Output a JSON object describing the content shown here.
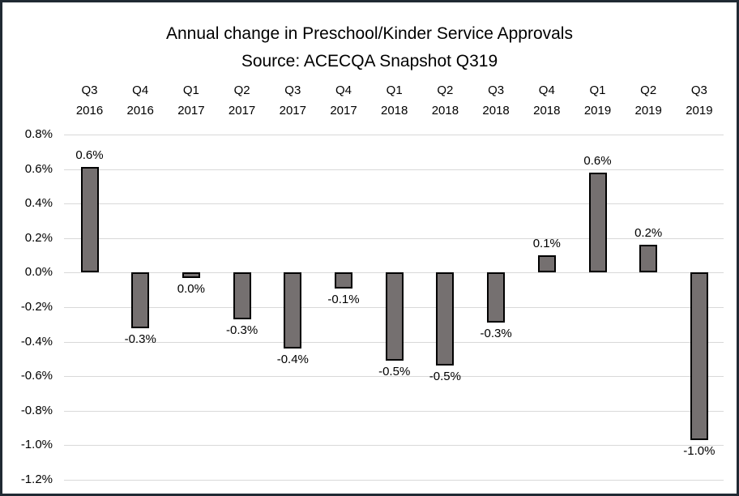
{
  "chart_data": {
    "type": "bar",
    "title": "Annual change in Preschool/Kinder Service Approvals",
    "subtitle": "Source: ACECQA Snapshot Q319",
    "legend_position": "none",
    "grid": true,
    "ylim": [
      -1.2,
      0.8
    ],
    "colors": {
      "bar_fill": "#757070",
      "bar_border": "#000000",
      "gridline": "#d9d9d9",
      "text": "#000000",
      "frame_border": "#202a33"
    },
    "y_axis": {
      "tick_format": "percent",
      "ticks": [
        {
          "value": 0.8,
          "label": "0.8%"
        },
        {
          "value": 0.6,
          "label": "0.6%"
        },
        {
          "value": 0.4,
          "label": "0.4%"
        },
        {
          "value": 0.2,
          "label": "0.2%"
        },
        {
          "value": 0.0,
          "label": "0.0%"
        },
        {
          "value": -0.2,
          "label": "-0.2%"
        },
        {
          "value": -0.4,
          "label": "-0.4%"
        },
        {
          "value": -0.6,
          "label": "-0.6%"
        },
        {
          "value": -0.8,
          "label": "-0.8%"
        },
        {
          "value": -1.0,
          "label": "-1.0%"
        },
        {
          "value": -1.2,
          "label": "-1.2%"
        }
      ]
    },
    "points": [
      {
        "quarter": "Q3",
        "year": "2016",
        "value": 0.61,
        "label": "0.6%"
      },
      {
        "quarter": "Q4",
        "year": "2016",
        "value": -0.32,
        "label": "-0.3%"
      },
      {
        "quarter": "Q1",
        "year": "2017",
        "value": -0.03,
        "label": "0.0%"
      },
      {
        "quarter": "Q2",
        "year": "2017",
        "value": -0.27,
        "label": "-0.3%"
      },
      {
        "quarter": "Q3",
        "year": "2017",
        "value": -0.44,
        "label": "-0.4%"
      },
      {
        "quarter": "Q4",
        "year": "2017",
        "value": -0.09,
        "label": "-0.1%"
      },
      {
        "quarter": "Q1",
        "year": "2018",
        "value": -0.51,
        "label": "-0.5%"
      },
      {
        "quarter": "Q2",
        "year": "2018",
        "value": -0.54,
        "label": "-0.5%"
      },
      {
        "quarter": "Q3",
        "year": "2018",
        "value": -0.29,
        "label": "-0.3%"
      },
      {
        "quarter": "Q4",
        "year": "2018",
        "value": 0.1,
        "label": "0.1%"
      },
      {
        "quarter": "Q1",
        "year": "2019",
        "value": 0.58,
        "label": "0.6%"
      },
      {
        "quarter": "Q2",
        "year": "2019",
        "value": 0.16,
        "label": "0.2%"
      },
      {
        "quarter": "Q3",
        "year": "2019",
        "value": -0.97,
        "label": "-1.0%"
      }
    ]
  }
}
